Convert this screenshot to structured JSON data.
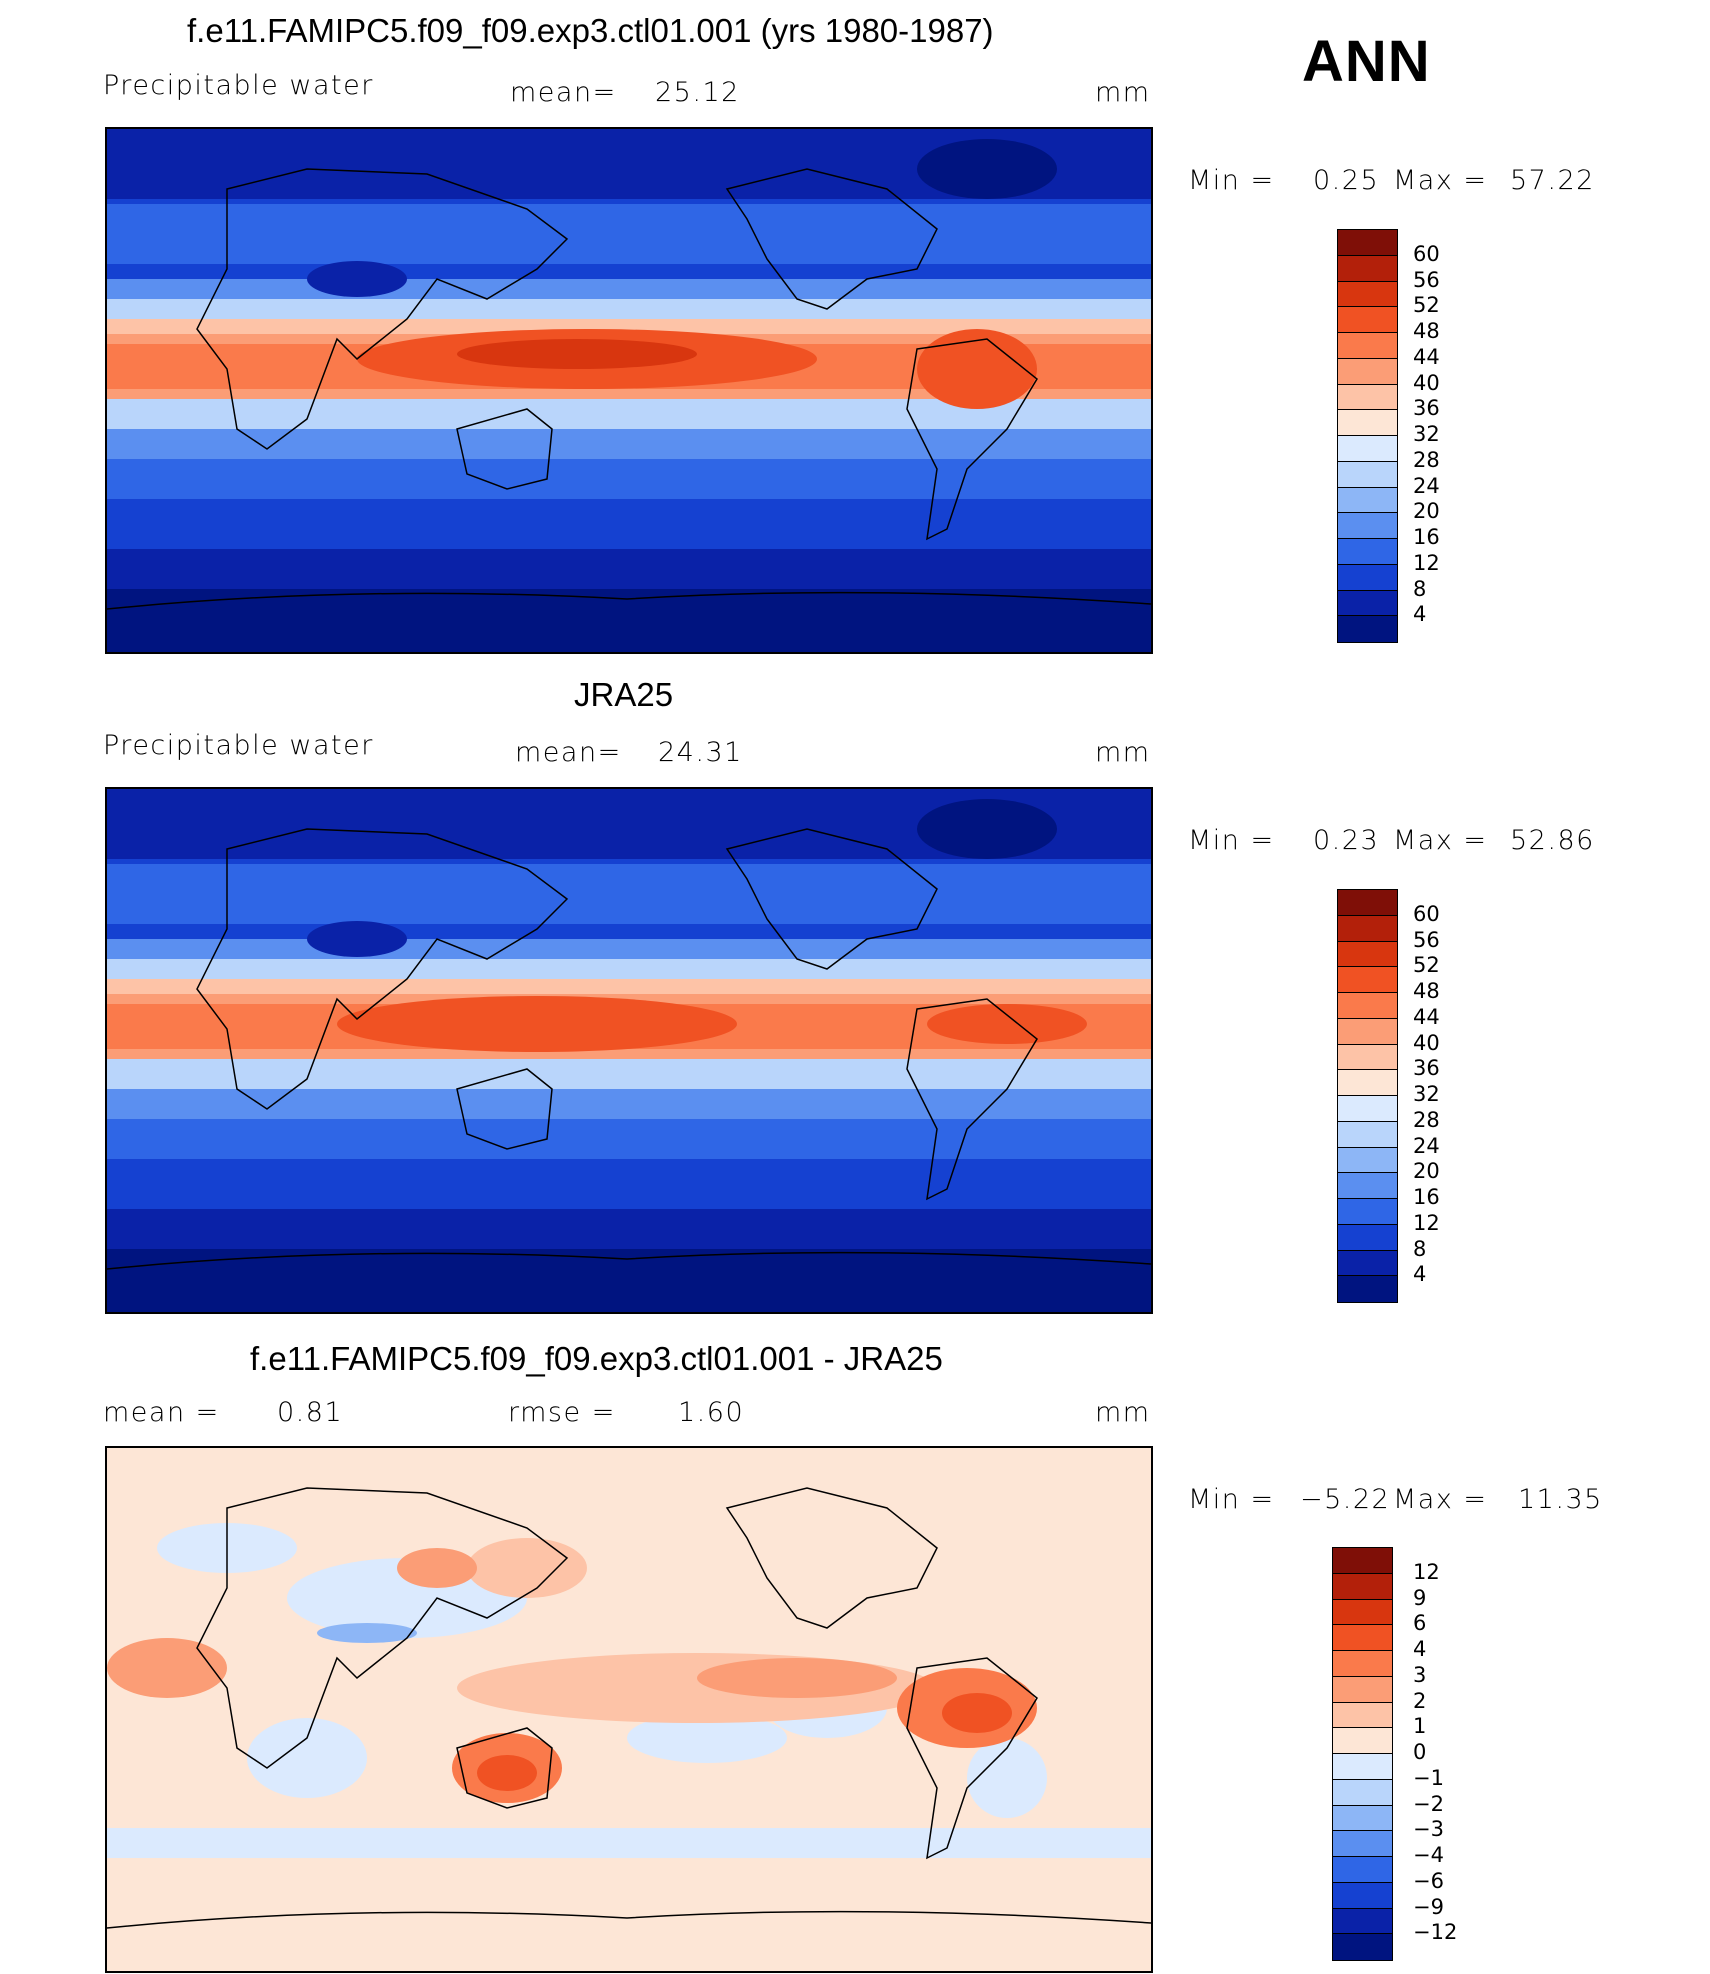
{
  "season": "ANN",
  "panels": [
    {
      "title": "f.e11.FAMIPC5.f09_f09.exp3.ctl01.001 (yrs 1980-1987)",
      "left_label": "Precipitable  water",
      "stat_label": "mean=",
      "stat_value": "25.12",
      "units": "mm",
      "min_label": "Min  =",
      "min_value": "0.25",
      "max_label": "Max  =",
      "max_value": "57.22",
      "colorbar": [
        "60",
        "56",
        "52",
        "48",
        "44",
        "40",
        "36",
        "32",
        "28",
        "24",
        "20",
        "16",
        "12",
        "8",
        "4"
      ],
      "colors": [
        "#7f0f07",
        "#b3200a",
        "#d8360f",
        "#f05223",
        "#fa7a4b",
        "#fb9d76",
        "#fdc3a7",
        "#fde6d6",
        "#dbeafe",
        "#b9d5fb",
        "#8db6f6",
        "#5b8ff0",
        "#2f66e6",
        "#1541d1",
        "#0a22a8",
        "#001480"
      ]
    },
    {
      "title": "JRA25",
      "left_label": "Precipitable  water",
      "stat_label": "mean=",
      "stat_value": "24.31",
      "units": "mm",
      "min_label": "Min  =",
      "min_value": "0.23",
      "max_label": "Max  =",
      "max_value": "52.86",
      "colorbar": [
        "60",
        "56",
        "52",
        "48",
        "44",
        "40",
        "36",
        "32",
        "28",
        "24",
        "20",
        "16",
        "12",
        "8",
        "4"
      ],
      "colors": [
        "#7f0f07",
        "#b3200a",
        "#d8360f",
        "#f05223",
        "#fa7a4b",
        "#fb9d76",
        "#fdc3a7",
        "#fde6d6",
        "#dbeafe",
        "#b9d5fb",
        "#8db6f6",
        "#5b8ff0",
        "#2f66e6",
        "#1541d1",
        "#0a22a8",
        "#001480"
      ]
    },
    {
      "title": "f.e11.FAMIPC5.f09_f09.exp3.ctl01.001 - JRA25",
      "left_label": "mean  =",
      "left_value": "0.81",
      "stat_label": "rmse  =",
      "stat_value": "1.60",
      "units": "mm",
      "min_label": "Min  =",
      "min_value": "−5.22",
      "max_label": "Max  =",
      "max_value": "11.35",
      "colorbar": [
        "12",
        "9",
        "6",
        "4",
        "3",
        "2",
        "1",
        "0",
        "−1",
        "−2",
        "−3",
        "−4",
        "−6",
        "−9",
        "−12"
      ],
      "colors": [
        "#7f0f07",
        "#b3200a",
        "#d8360f",
        "#f05223",
        "#fa7a4b",
        "#fb9d76",
        "#fdc3a7",
        "#fde6d6",
        "#dbeafe",
        "#b9d5fb",
        "#8db6f6",
        "#5b8ff0",
        "#2f66e6",
        "#1541d1",
        "#0a22a8",
        "#001480"
      ]
    }
  ]
}
